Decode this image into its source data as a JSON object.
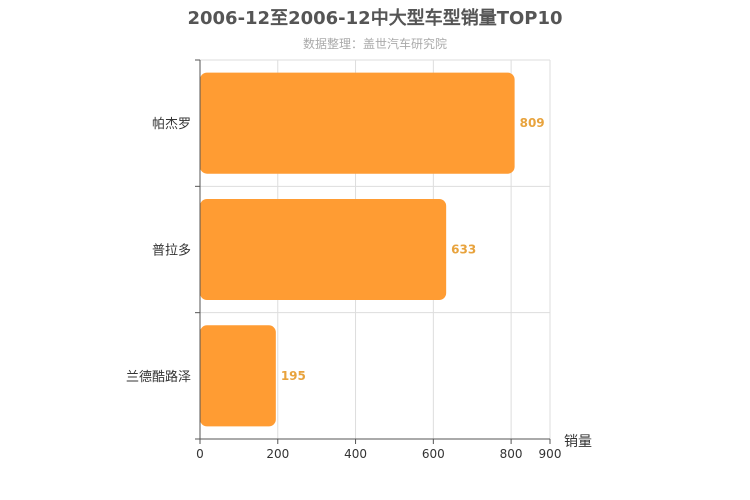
{
  "chart_data": {
    "type": "bar",
    "orientation": "horizontal",
    "title": "2006-12至2006-12中大型车型销量TOP10",
    "subtitle": "数据整理：盖世汽车研究院",
    "categories": [
      "帕杰罗",
      "普拉多",
      "兰德酷路泽"
    ],
    "values": [
      809,
      633,
      195
    ],
    "xlabel": "销量",
    "ylabel": "",
    "xlim": [
      0,
      900
    ],
    "x_ticks": [
      0,
      200,
      400,
      600,
      800,
      900
    ],
    "grid": true,
    "bar_color": "#ff9c33",
    "label_color": "#e8a33d"
  }
}
